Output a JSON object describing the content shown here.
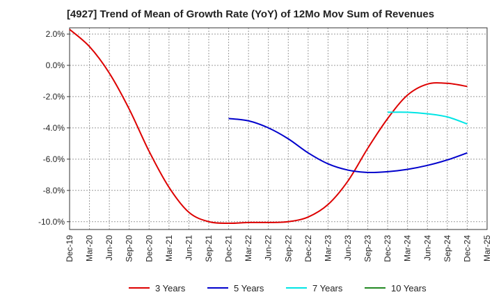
{
  "chart_data": {
    "type": "line",
    "title": "[4927]  Trend of Mean of Growth Rate (YoY) of 12Mo Mov Sum of Revenues",
    "xlabel": "",
    "ylabel": "",
    "ylim": [
      -10.5,
      2.4
    ],
    "y_ticks": [
      2.0,
      0.0,
      -2.0,
      -4.0,
      -6.0,
      -8.0,
      -10.0
    ],
    "y_tick_labels": [
      "2.0%",
      "0.0%",
      "-2.0%",
      "-4.0%",
      "-6.0%",
      "-8.0%",
      "-10.0%"
    ],
    "x_tick_labels": [
      "Dec-19",
      "Mar-20",
      "Jun-20",
      "Sep-20",
      "Dec-20",
      "Mar-21",
      "Jun-21",
      "Sep-21",
      "Dec-21",
      "Mar-22",
      "Jun-22",
      "Sep-22",
      "Dec-22",
      "Mar-23",
      "Jun-23",
      "Sep-23",
      "Dec-23",
      "Mar-24",
      "Jun-24",
      "Sep-24",
      "Dec-24",
      "Mar-25"
    ],
    "grid": true,
    "legend_position": "bottom",
    "series": [
      {
        "name": "3 Years",
        "color": "#dd0000",
        "x_index": [
          0,
          1,
          2,
          3,
          4,
          5,
          6,
          7,
          8,
          9,
          10,
          11,
          12,
          13,
          14,
          15,
          16,
          17,
          18,
          19,
          20
        ],
        "values": [
          2.3,
          1.2,
          -0.5,
          -2.8,
          -5.5,
          -7.8,
          -9.4,
          -10.0,
          -10.1,
          -10.05,
          -10.05,
          -10.0,
          -9.7,
          -8.9,
          -7.4,
          -5.3,
          -3.4,
          -1.9,
          -1.2,
          -1.15,
          -1.35
        ]
      },
      {
        "name": "5 Years",
        "color": "#0000cc",
        "x_index": [
          8,
          9,
          10,
          11,
          12,
          13,
          14,
          15,
          16,
          17,
          18,
          19,
          20
        ],
        "values": [
          -3.4,
          -3.55,
          -4.0,
          -4.7,
          -5.6,
          -6.3,
          -6.7,
          -6.85,
          -6.8,
          -6.65,
          -6.4,
          -6.05,
          -5.6
        ]
      },
      {
        "name": "7 Years",
        "color": "#00e5e5",
        "x_index": [
          16,
          17,
          18,
          19,
          20
        ],
        "values": [
          -3.0,
          -3.0,
          -3.1,
          -3.3,
          -3.75
        ]
      },
      {
        "name": "10 Years",
        "color": "#228822",
        "x_index": [],
        "values": []
      }
    ]
  }
}
